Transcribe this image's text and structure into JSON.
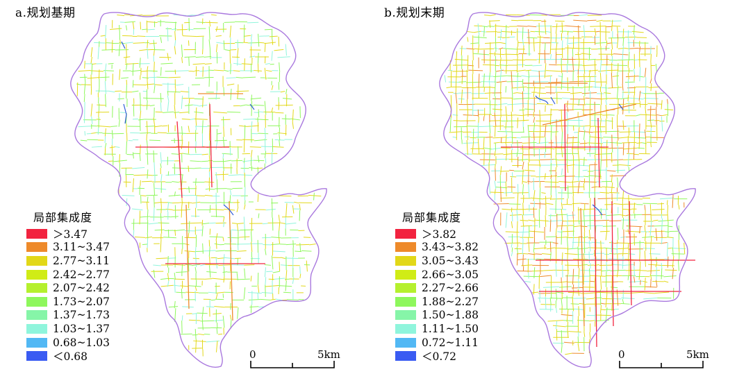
{
  "panels": [
    {
      "title": "a.规划基期",
      "legend_title": "局部集成度",
      "legend": [
        {
          "label": "＞3.47",
          "color": "#f2233f"
        },
        {
          "label": "3.11~3.47",
          "color": "#ee8a2a"
        },
        {
          "label": "2.77~3.11",
          "color": "#e2d818"
        },
        {
          "label": "2.42~2.77",
          "color": "#d0ec16"
        },
        {
          "label": "2.07~2.42",
          "color": "#b5f02e"
        },
        {
          "label": "1.73~2.07",
          "color": "#8ef75c"
        },
        {
          "label": "1.37~1.73",
          "color": "#86f5a8"
        },
        {
          "label": "1.03~1.37",
          "color": "#8ff5dc"
        },
        {
          "label": "0.68~1.03",
          "color": "#52b8f4"
        },
        {
          "label": "＜0.68",
          "color": "#3a5bf2"
        }
      ],
      "scale": {
        "zero": "0",
        "end": "5km"
      }
    },
    {
      "title": "b.规划末期",
      "legend_title": "局部集成度",
      "legend": [
        {
          "label": "＞3.82",
          "color": "#f2233f"
        },
        {
          "label": "3.43~3.82",
          "color": "#ee8a2a"
        },
        {
          "label": "3.05~3.43",
          "color": "#e2d818"
        },
        {
          "label": "2.66~3.05",
          "color": "#d0ec16"
        },
        {
          "label": "2.27~2.66",
          "color": "#b5f02e"
        },
        {
          "label": "1.88~2.27",
          "color": "#8ef75c"
        },
        {
          "label": "1.50~1.88",
          "color": "#86f5a8"
        },
        {
          "label": "1.11~1.50",
          "color": "#8ff5dc"
        },
        {
          "label": "0.72~1.11",
          "color": "#52b8f4"
        },
        {
          "label": "＜0.72",
          "color": "#3a5bf2"
        }
      ],
      "scale": {
        "zero": "0",
        "end": "5km"
      }
    }
  ],
  "colors": {
    "boundary": "#a978de",
    "water": "#2f5bd8",
    "highest_class": "#f2233f",
    "high_class": "#ee8a2a",
    "yellow_class": "#e2d818",
    "green_class": "#8ef75c",
    "cyan_class": "#8ff5dc"
  }
}
